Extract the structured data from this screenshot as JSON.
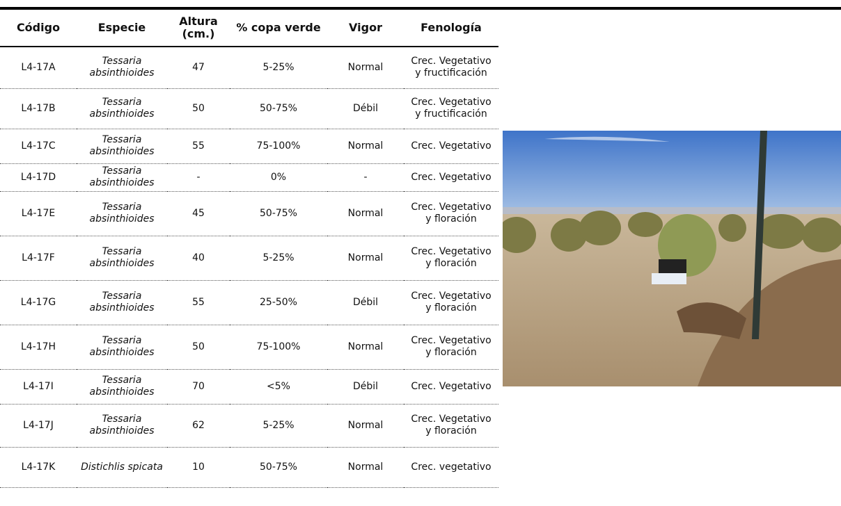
{
  "table": {
    "header": [
      "Código",
      "Especie",
      "Altura (cm.)",
      "% copa verde",
      "Vigor",
      "Fenología"
    ],
    "rows": [
      [
        "L4-17A",
        "Tessaria absinthioides",
        "47",
        "5-25%",
        "Normal",
        "Crec. Vegetativo y fructificación"
      ],
      [
        "L4-17B",
        "Tessaria absinthioides",
        "50",
        "50-75%",
        "Débil",
        "Crec. Vegetativo y fructificación"
      ],
      [
        "L4-17C",
        "Tessaria absinthioides",
        "55",
        "75-100%",
        "Normal",
        "Crec. Vegetativo"
      ],
      [
        "L4-17D",
        "Tessaria absinthioides",
        "-",
        "0%",
        "-",
        "Crec. Vegetativo"
      ],
      [
        "L4-17E",
        "Tessaria absinthioides",
        "45",
        "50-75%",
        "Normal",
        "Crec. Vegetativo y floración"
      ],
      [
        "L4-17F",
        "Tessaria absinthioides",
        "40",
        "5-25%",
        "Normal",
        "Crec. Vegetativo y floración"
      ],
      [
        "L4-17G",
        "Tessaria absinthioides",
        "55",
        "25-50%",
        "Débil",
        "Crec. Vegetativo y floración"
      ],
      [
        "L4-17H",
        "Tessaria absinthioides",
        "50",
        "75-100%",
        "Normal",
        "Crec. Vegetativo y floración"
      ],
      [
        "L4-17I",
        "Tessaria absinthioides",
        "70",
        "<5%",
        "Débil",
        "Crec. Vegetativo"
      ],
      [
        "L4-17J",
        "Tessaria absinthioides",
        "62",
        "5-25%",
        "Normal",
        "Crec. Vegetativo y floración"
      ],
      [
        "L4-17K",
        "Distichlis spicata",
        "10",
        "50-75%",
        "Normal",
        "Crec. vegetativo"
      ]
    ]
  }
}
